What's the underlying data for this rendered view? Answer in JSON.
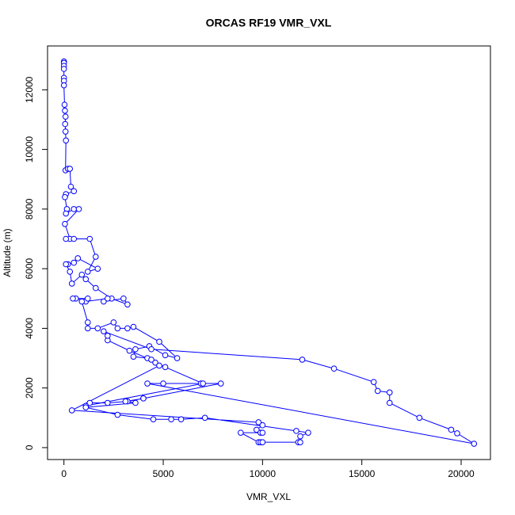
{
  "chart_data": {
    "type": "line",
    "title": "ORCAS RF19 VMR_VXL",
    "x_label": "VMR_VXL",
    "y_label": "Altitude (m)",
    "color": "#0000ff",
    "x": [
      0,
      0,
      0,
      0,
      0,
      0,
      0,
      30,
      50,
      80,
      60,
      80,
      100,
      80,
      200,
      300,
      350,
      500,
      100,
      50,
      150,
      100,
      500,
      750,
      50,
      300,
      500,
      100,
      1300,
      1600,
      1200,
      1700,
      700,
      500,
      200,
      100,
      300,
      400,
      900,
      1100,
      1600,
      2400,
      3200,
      3000,
      2000,
      2200,
      1100,
      600,
      450,
      1200,
      900,
      1200,
      1200,
      1700,
      2500,
      2700,
      3200,
      3500,
      4800,
      5700,
      5100,
      4300,
      3600,
      3500,
      4200,
      3300,
      2200,
      2200,
      2000,
      4400,
      12000,
      13600,
      15600,
      15800,
      16400,
      16400,
      17900,
      19500,
      19800,
      20650,
      4200,
      5000,
      6900,
      7900,
      4000,
      3200,
      2200,
      1300,
      1100,
      7000,
      5100,
      4600,
      4400,
      4800,
      400,
      9800,
      10000,
      9700,
      9900,
      10000,
      8900,
      9800,
      9900,
      10000,
      11800,
      11900,
      11900,
      12300,
      11700,
      7100,
      5900,
      5400,
      4500,
      2700,
      1100,
      3600,
      3100,
      4000
    ],
    "values": [
      12950,
      12900,
      12800,
      12700,
      12400,
      12300,
      12150,
      11500,
      11300,
      11100,
      10850,
      10600,
      10300,
      9300,
      9350,
      9350,
      8750,
      8600,
      8500,
      8400,
      8000,
      7850,
      8000,
      8000,
      7500,
      7000,
      7000,
      7000,
      7000,
      6400,
      5900,
      6000,
      6350,
      6200,
      6150,
      6150,
      5900,
      5500,
      5800,
      5650,
      5350,
      5000,
      4800,
      5000,
      4900,
      5000,
      4900,
      5000,
      5000,
      5000,
      4900,
      4200,
      4000,
      4000,
      4200,
      4000,
      4000,
      4050,
      3550,
      3000,
      3100,
      3400,
      3300,
      3050,
      3000,
      3250,
      3600,
      3750,
      3900,
      3300,
      2950,
      2650,
      2200,
      1900,
      1850,
      1500,
      1000,
      600,
      480,
      130,
      2150,
      2150,
      2150,
      2150,
      1650,
      1550,
      1500,
      1500,
      1400,
      2150,
      2700,
      2850,
      2950,
      2750,
      1250,
      850,
      750,
      600,
      500,
      500,
      500,
      180,
      180,
      180,
      180,
      180,
      380,
      500,
      560,
      1000,
      950,
      950,
      950,
      1100,
      1350,
      1500,
      1550,
      1650
    ],
    "xlim": [
      -826,
      21476
    ],
    "ylim": [
      -400,
      13470
    ],
    "xticks": [
      0,
      5000,
      10000,
      15000,
      20000
    ],
    "yticks": [
      0,
      2000,
      4000,
      6000,
      8000,
      10000,
      12000
    ]
  }
}
